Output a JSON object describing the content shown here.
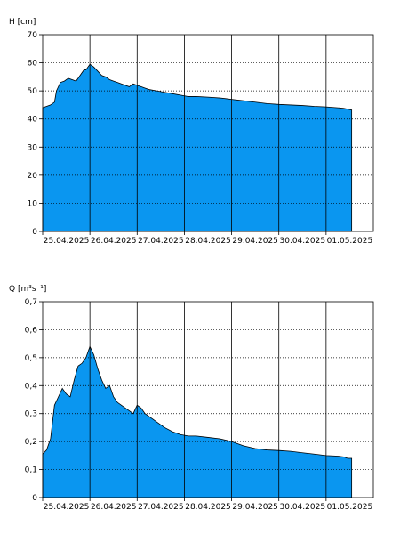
{
  "chart_data": [
    {
      "type": "area",
      "ylabel": "H [cm]",
      "ylim": [
        0,
        70
      ],
      "yticks": [
        0,
        10,
        20,
        30,
        40,
        50,
        60,
        70
      ],
      "ytick_labels": [
        "0",
        "10",
        "20",
        "30",
        "40",
        "50",
        "60",
        "70"
      ],
      "xlim": [
        "2025-04-25T00:00",
        "2025-05-02T00:00"
      ],
      "xtick_labels": [
        "25.04.2025",
        "26.04.2025",
        "27.04.2025",
        "28.04.2025",
        "29.04.2025",
        "30.04.2025",
        "01.05.2025"
      ],
      "fill_color": "#0a96f0",
      "grid": "dotted horizontal, solid vertical at midnight",
      "series": [
        {
          "x": [
            "2025-04-25T00:00",
            "2025-04-25T02:00",
            "2025-04-25T04:00",
            "2025-04-25T06:00",
            "2025-04-25T07:00",
            "2025-04-25T09:00",
            "2025-04-25T11:00",
            "2025-04-25T13:00",
            "2025-04-25T15:00",
            "2025-04-25T17:00",
            "2025-04-25T19:00",
            "2025-04-25T21:00",
            "2025-04-25T22:00",
            "2025-04-26T00:00",
            "2025-04-26T02:00",
            "2025-04-26T04:00",
            "2025-04-26T06:00",
            "2025-04-26T08:00",
            "2025-04-26T10:00",
            "2025-04-26T12:00",
            "2025-04-26T14:00",
            "2025-04-26T16:00",
            "2025-04-26T18:00",
            "2025-04-26T20:00",
            "2025-04-26T22:00",
            "2025-04-27T00:00",
            "2025-04-27T02:00",
            "2025-04-27T04:00",
            "2025-04-27T06:00",
            "2025-04-27T10:00",
            "2025-04-27T14:00",
            "2025-04-27T18:00",
            "2025-04-27T22:00",
            "2025-04-28T02:00",
            "2025-04-28T06:00",
            "2025-04-28T12:00",
            "2025-04-28T18:00",
            "2025-04-29T00:00",
            "2025-04-29T06:00",
            "2025-04-29T12:00",
            "2025-04-29T18:00",
            "2025-04-30T00:00",
            "2025-04-30T06:00",
            "2025-04-30T12:00",
            "2025-04-30T18:00",
            "2025-05-01T00:00",
            "2025-05-01T06:00",
            "2025-05-01T09:00",
            "2025-05-01T11:00",
            "2025-05-01T13:00"
          ],
          "values": [
            44,
            44.5,
            45,
            46,
            50,
            53,
            53.5,
            54.5,
            54,
            53.5,
            55.5,
            57.5,
            57.5,
            59.5,
            58.5,
            57,
            55.5,
            55,
            54,
            53.5,
            53,
            52.5,
            52,
            51.5,
            52.5,
            52,
            51.5,
            51,
            50.5,
            50,
            49.5,
            49,
            48.5,
            48,
            48,
            47.8,
            47.5,
            47,
            46.5,
            46,
            45.5,
            45.2,
            45,
            44.8,
            44.5,
            44.3,
            44,
            43.8,
            43.5,
            43.2
          ]
        }
      ]
    },
    {
      "type": "area",
      "ylabel": "Q [m³s⁻¹]",
      "ylim": [
        0,
        0.7
      ],
      "yticks": [
        0,
        0.1,
        0.2,
        0.3,
        0.4,
        0.5,
        0.6,
        0.7
      ],
      "ytick_labels": [
        "0",
        "0,1",
        "0,2",
        "0,3",
        "0,4",
        "0,5",
        "0,6",
        "0,7"
      ],
      "xlim": [
        "2025-04-25T00:00",
        "2025-05-02T00:00"
      ],
      "xtick_labels": [
        "25.04.2025",
        "26.04.2025",
        "27.04.2025",
        "28.04.2025",
        "29.04.2025",
        "30.04.2025",
        "01.05.2025"
      ],
      "fill_color": "#0a96f0",
      "grid": "dotted horizontal, solid vertical at midnight",
      "series": [
        {
          "x": [
            "2025-04-25T00:00",
            "2025-04-25T02:00",
            "2025-04-25T04:00",
            "2025-04-25T06:00",
            "2025-04-25T08:00",
            "2025-04-25T10:00",
            "2025-04-25T12:00",
            "2025-04-25T14:00",
            "2025-04-25T16:00",
            "2025-04-25T18:00",
            "2025-04-25T20:00",
            "2025-04-25T22:00",
            "2025-04-26T00:00",
            "2025-04-26T02:00",
            "2025-04-26T04:00",
            "2025-04-26T06:00",
            "2025-04-26T08:00",
            "2025-04-26T10:00",
            "2025-04-26T12:00",
            "2025-04-26T14:00",
            "2025-04-26T16:00",
            "2025-04-26T18:00",
            "2025-04-26T20:00",
            "2025-04-26T22:00",
            "2025-04-27T00:00",
            "2025-04-27T02:00",
            "2025-04-27T04:00",
            "2025-04-27T06:00",
            "2025-04-27T10:00",
            "2025-04-27T14:00",
            "2025-04-27T18:00",
            "2025-04-27T22:00",
            "2025-04-28T02:00",
            "2025-04-28T06:00",
            "2025-04-28T12:00",
            "2025-04-28T18:00",
            "2025-04-29T00:00",
            "2025-04-29T06:00",
            "2025-04-29T12:00",
            "2025-04-29T18:00",
            "2025-04-30T00:00",
            "2025-04-30T06:00",
            "2025-04-30T12:00",
            "2025-04-30T18:00",
            "2025-05-01T00:00",
            "2025-05-01T06:00",
            "2025-05-01T09:00",
            "2025-05-01T11:00",
            "2025-05-01T13:00"
          ],
          "values": [
            0.155,
            0.17,
            0.21,
            0.33,
            0.36,
            0.39,
            0.37,
            0.36,
            0.42,
            0.47,
            0.48,
            0.5,
            0.54,
            0.51,
            0.46,
            0.42,
            0.39,
            0.4,
            0.36,
            0.34,
            0.33,
            0.32,
            0.31,
            0.3,
            0.33,
            0.32,
            0.3,
            0.29,
            0.27,
            0.25,
            0.235,
            0.225,
            0.22,
            0.22,
            0.215,
            0.21,
            0.2,
            0.185,
            0.175,
            0.17,
            0.168,
            0.165,
            0.16,
            0.155,
            0.15,
            0.148,
            0.145,
            0.14,
            0.14
          ]
        }
      ]
    }
  ]
}
